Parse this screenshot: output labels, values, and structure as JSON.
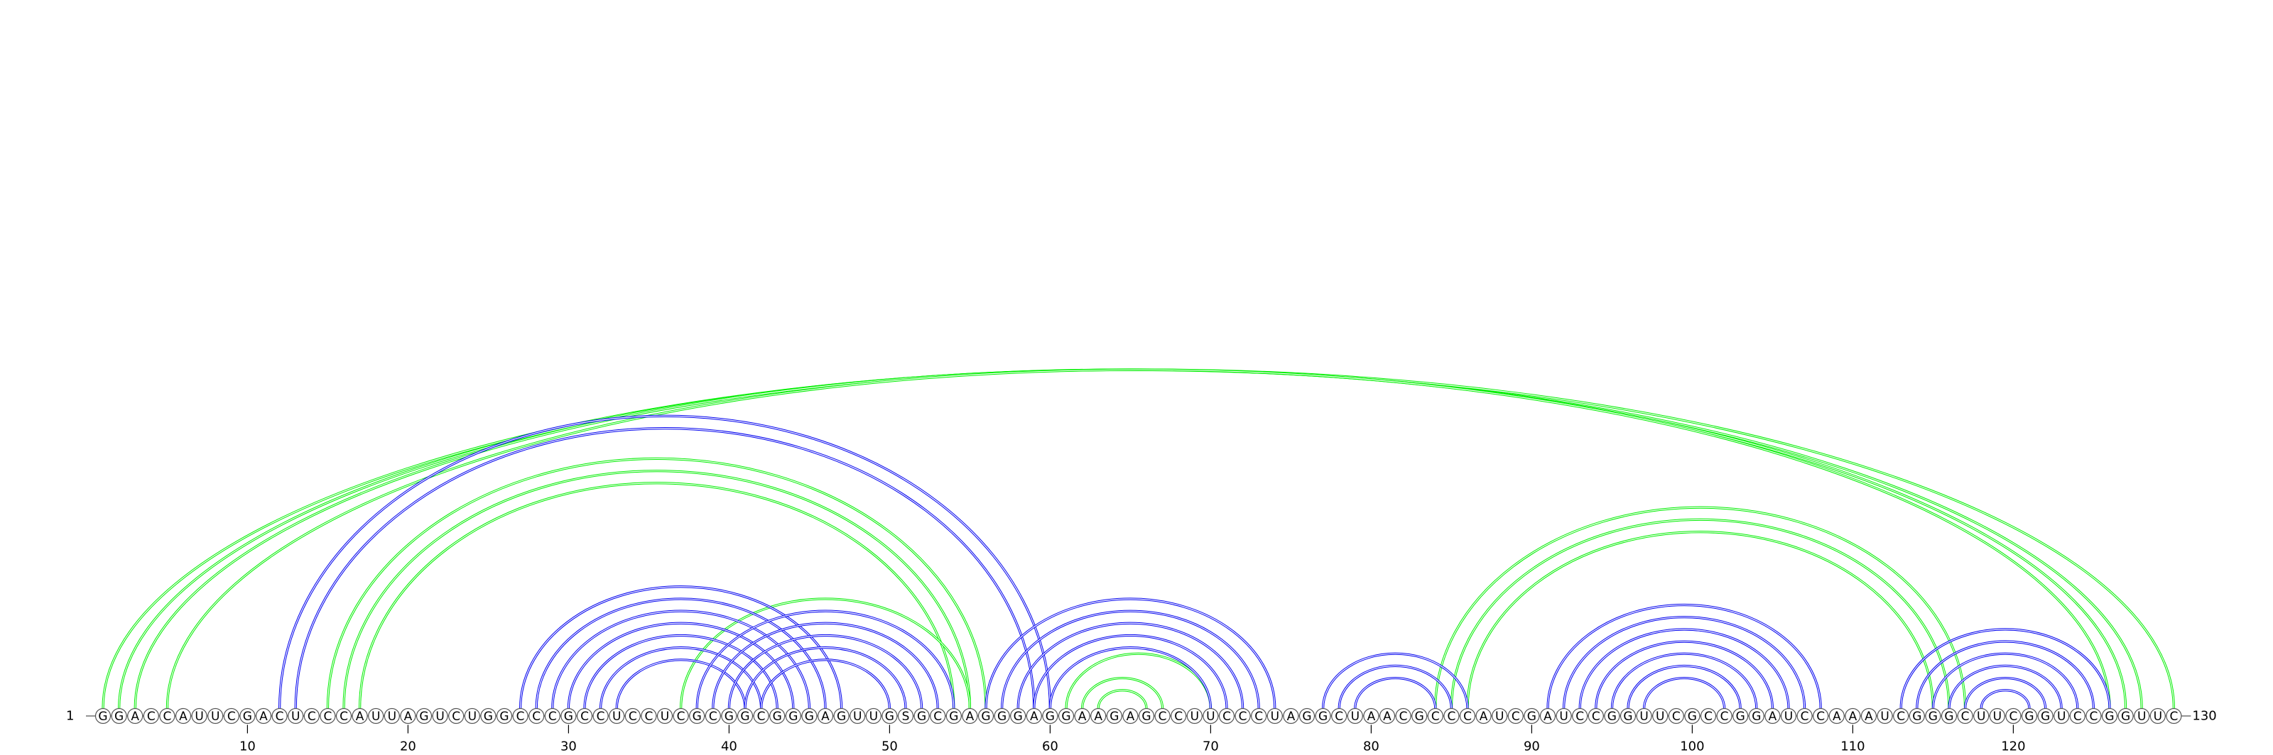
{
  "sequence": "GGACCAUUCGACUCCCAUUAGUCUGGCCCGCCUCCUCGCGGCGGGAGUUGSGCGAGGGAGGAAGAGCCUUCCCUAGGCUAACGCCCAUCGAUCCGGUUCGCCGGAUCCAAAUCGGGCUUCGGUCCGGUUC",
  "start_label": "1",
  "end_label": "130",
  "tick_labels": [
    "10",
    "20",
    "30",
    "40",
    "50",
    "60",
    "70",
    "80",
    "90",
    "100",
    "110",
    "120"
  ],
  "colors": {
    "blue": "#0000ee",
    "green": "#00ee00"
  },
  "chart_data": {
    "type": "arc-diagram",
    "length": 130,
    "structures": [
      {
        "color": "green",
        "helices": [
          {
            "i": [
              1,
              2,
              3,
              5
            ],
            "j": [
              130,
              128,
              127,
              126
            ]
          },
          {
            "i": [
              15,
              16,
              17
            ],
            "j": [
              56,
              55,
              54
            ]
          },
          {
            "i": [
              84,
              85,
              86
            ],
            "j": [
              117,
              116,
              115
            ]
          },
          {
            "i": [
              62,
              63
            ],
            "j": [
              67,
              66
            ]
          },
          {
            "i": [
              37
            ],
            "j": [
              55
            ]
          },
          {
            "i": [
              61
            ],
            "j": [
              70
            ]
          }
        ]
      },
      {
        "color": "blue",
        "helices": [
          {
            "i": [
              12,
              13
            ],
            "j": [
              60,
              59
            ]
          },
          {
            "i": [
              27,
              28,
              29,
              30,
              31,
              32,
              33
            ],
            "j": [
              47,
              46,
              45,
              44,
              43,
              42,
              41
            ]
          },
          {
            "i": [
              38,
              39,
              40,
              41,
              42
            ],
            "j": [
              54,
              53,
              52,
              51,
              50
            ]
          },
          {
            "i": [
              56,
              57,
              58,
              59,
              60
            ],
            "j": [
              74,
              73,
              72,
              71,
              70
            ]
          },
          {
            "i": [
              77,
              78,
              79
            ],
            "j": [
              86,
              85,
              84
            ]
          },
          {
            "i": [
              91,
              92,
              93,
              94,
              95,
              96,
              97
            ],
            "j": [
              108,
              107,
              106,
              105,
              104,
              103,
              102
            ]
          },
          {
            "i": [
              113,
              114,
              115,
              116,
              117,
              118
            ],
            "j": [
              126,
              125,
              124,
              123,
              122,
              121
            ]
          }
        ]
      }
    ]
  }
}
